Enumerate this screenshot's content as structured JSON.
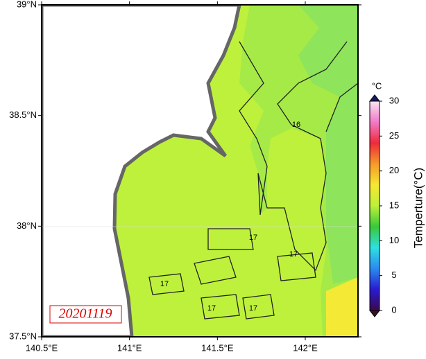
{
  "map": {
    "lonlim": [
      140.5,
      142.3
    ],
    "latlim": [
      37.5,
      39
    ],
    "lon_ticks": [
      {
        "value": 140.5,
        "label": "140.5°E"
      },
      {
        "value": 141,
        "label": "141°E"
      },
      {
        "value": 141.5,
        "label": "141.5°E"
      },
      {
        "value": 142,
        "label": "142°E"
      }
    ],
    "lat_ticks": [
      {
        "value": 37.5,
        "label": "37.5°N"
      },
      {
        "value": 38,
        "label": "38°N"
      },
      {
        "value": 38.5,
        "label": "38.5°N"
      },
      {
        "value": 39,
        "label": "39°N"
      }
    ],
    "date": "20201119",
    "contour_labels": [
      "16",
      "17",
      "17",
      "17",
      "17",
      "17"
    ]
  },
  "colorbar": {
    "unit": "°C",
    "label": "Temperture(°C)",
    "range": [
      0,
      30
    ],
    "ticks": [
      0,
      5,
      10,
      15,
      20,
      25,
      30
    ],
    "colors": [
      "#3a0a4a",
      "#2a1ad0",
      "#2a8af0",
      "#30e0e0",
      "#38c83a",
      "#bef03a",
      "#f6e832",
      "#f59a2a",
      "#ee2a3a",
      "#f27ac8",
      "#fbe4f4"
    ]
  }
}
